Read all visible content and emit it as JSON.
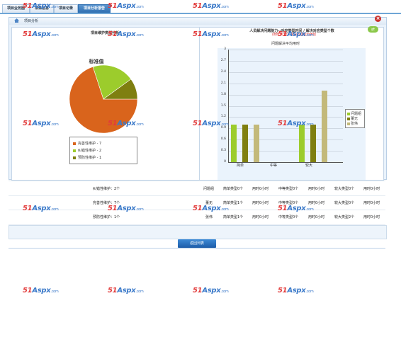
{
  "tabs": [
    {
      "label": "项目业务图"
    },
    {
      "label": "项目信息"
    },
    {
      "label": "项目记录"
    },
    {
      "label": "项目分析报告"
    }
  ],
  "panel": {
    "title": "项目分析"
  },
  "pie": {
    "section_title": "项目维护类型分析",
    "chart_title": "标准值",
    "legend": [
      {
        "label": "完善性维护 - 7",
        "color": "#d9641c"
      },
      {
        "label": "纠错性维护 - 2",
        "color": "#9ccc2c"
      },
      {
        "label": "预防性维护 - 1",
        "color": "#7f7f10"
      }
    ]
  },
  "column": {
    "section_title": "人员解决问题能力--对应类型时间 / 解决对应类型个数",
    "subtitle": "(用时/个数)--解决问题能力体现",
    "axis_title": "问题解决平均用时",
    "legend": [
      {
        "label": "问题组",
        "color": "#9ccc2c"
      },
      {
        "label": "董无",
        "color": "#7f7f10"
      },
      {
        "label": "张伟",
        "color": "#c3b97a"
      }
    ]
  },
  "chart_data": [
    {
      "type": "pie",
      "title": "标准值",
      "categories": [
        "完善性维护",
        "纠错性维护",
        "预防性维护"
      ],
      "values": [
        7,
        2,
        1
      ],
      "colors": [
        "#d9641c",
        "#9ccc2c",
        "#7f7f10"
      ],
      "legend_position": "bottom"
    },
    {
      "type": "bar",
      "title": "人员解决问题能力--对应类型时间 / 解决对应类型个数",
      "ylabel": "问题解决平均用时",
      "categories": [
        "简单",
        "中等",
        "较大"
      ],
      "ylim": [
        0,
        3
      ],
      "yticks": [
        "0",
        "0.3",
        "0.6",
        "0.9",
        "1.2",
        "1.5",
        "1.8",
        "2.1",
        "2.4",
        "2.7",
        "3"
      ],
      "series": [
        {
          "name": "问题组",
          "values": [
            1,
            0,
            1
          ],
          "color": "#9ccc2c"
        },
        {
          "name": "董无",
          "values": [
            1,
            0,
            1
          ],
          "color": "#7f7f10"
        },
        {
          "name": "张伟",
          "values": [
            1,
            0,
            1.9
          ],
          "color": "#c3b97a"
        }
      ],
      "grid": true,
      "legend_position": "right"
    }
  ],
  "table": {
    "rows": [
      {
        "type": "纠错性维护：2个",
        "name": "问题组",
        "c1": "简单类型0个",
        "c2": "用时0小时",
        "c3": "中等类型0个",
        "c4": "用时0小时",
        "c5": "较大类型0个",
        "c6": "用时0小时"
      },
      {
        "type": "完善性维护：7个",
        "name": "董无",
        "c1": "简单类型1个",
        "c2": "用时0小时",
        "c3": "中等类型0个",
        "c4": "用时0小时",
        "c5": "较大类型0个",
        "c6": "用时0小时"
      },
      {
        "type": "预防性维护：1个",
        "name": "张伟",
        "c1": "简单类型1个",
        "c2": "用时0小时",
        "c3": "中等类型0个",
        "c4": "用时0小时",
        "c5": "较大类型2个",
        "c6": "用时0小时"
      }
    ]
  },
  "back_button": "返回列表",
  "watermark": {
    "brand_a": "51",
    "brand_b": "Aspx",
    "suffix": ".com"
  }
}
